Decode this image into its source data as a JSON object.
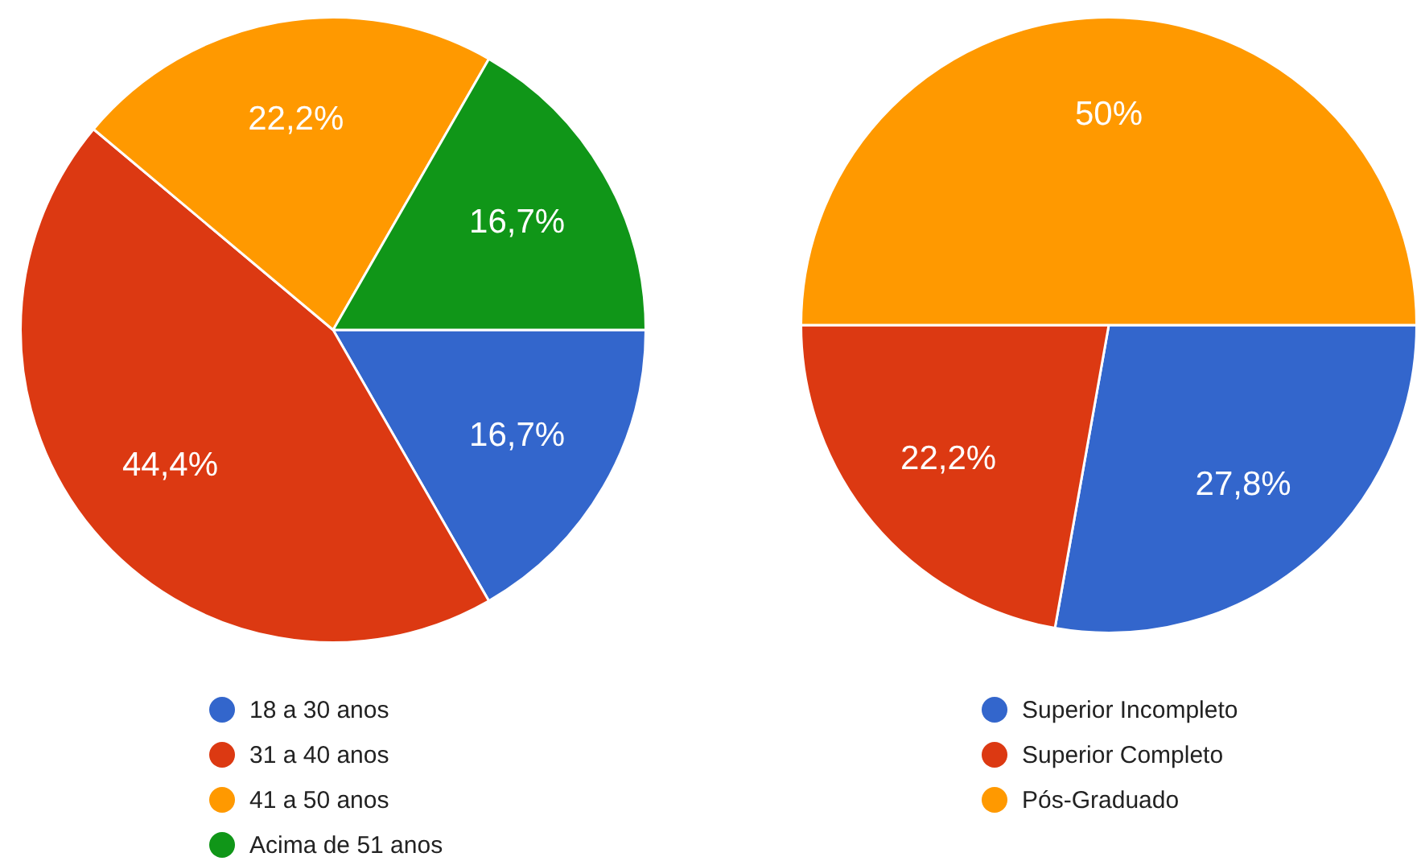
{
  "chart_data": [
    {
      "type": "pie",
      "categories": [
        "18 a 30 anos",
        "31 a 40 anos",
        "41 a 50 anos",
        "Acima de 51 anos"
      ],
      "values": [
        16.7,
        44.4,
        22.2,
        16.7
      ],
      "colors": [
        "#3366cc",
        "#dc3912",
        "#ff9900",
        "#109618"
      ],
      "value_labels": [
        "16,7%",
        "44,4%",
        "22,2%",
        "16,7%"
      ],
      "legend": "bottom"
    },
    {
      "type": "pie",
      "categories": [
        "Superior Incompleto",
        "Superior Completo",
        "Pós-Graduado"
      ],
      "values": [
        27.8,
        22.2,
        50
      ],
      "colors": [
        "#3366cc",
        "#dc3912",
        "#ff9900"
      ],
      "value_labels": [
        "27,8%",
        "22,2%",
        "50%"
      ],
      "legend": "bottom"
    }
  ]
}
